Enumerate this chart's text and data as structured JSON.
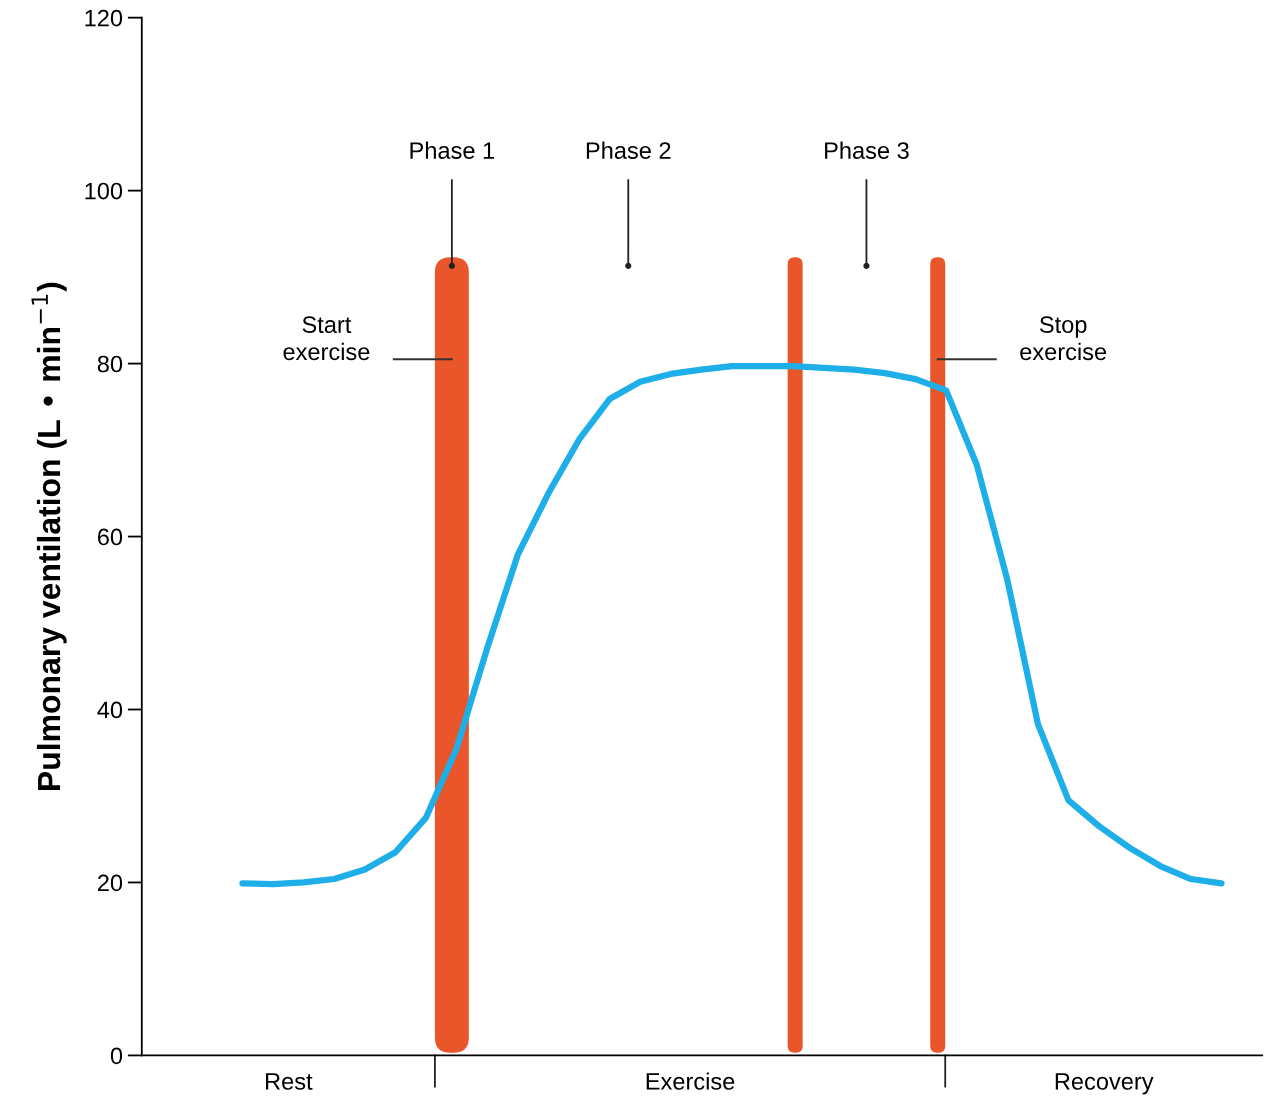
{
  "chart_data": {
    "type": "line",
    "ylabel": "Pulmonary ventilation (L • min$^{−1}$)",
    "ylim": [
      0,
      120
    ],
    "yticks": [
      0,
      20,
      40,
      60,
      80,
      100,
      120
    ],
    "categories": [
      null,
      null,
      null,
      null,
      null,
      null,
      null,
      null,
      null,
      null,
      null,
      null,
      null,
      null,
      null,
      null,
      null,
      null,
      null,
      null,
      null,
      null,
      null,
      null,
      null,
      null,
      null,
      null,
      null,
      null,
      null,
      null,
      null
    ],
    "series": [
      {
        "color": "#1eaee8",
        "values": [
          19.9,
          19.8,
          20.0,
          20.4,
          21.5,
          23.5,
          27.5,
          35.5,
          47.1,
          57.9,
          65.0,
          71.2,
          75.9,
          77.9,
          78.8,
          79.3,
          79.7,
          79.7,
          79.7,
          79.5,
          79.3,
          78.9,
          78.2,
          76.9,
          68.3,
          55.0,
          38.3,
          29.5,
          26.5,
          24.0,
          21.9,
          20.4,
          19.9
        ]
      }
    ],
    "annotations": [
      "Phase 1",
      "Phase 2",
      "Phase 3",
      "Start exercise",
      "Stop exercise",
      "Rest",
      "Exercise",
      "Recovery"
    ],
    "grid": false,
    "marker": "none",
    "line_style": "solid"
  }
}
